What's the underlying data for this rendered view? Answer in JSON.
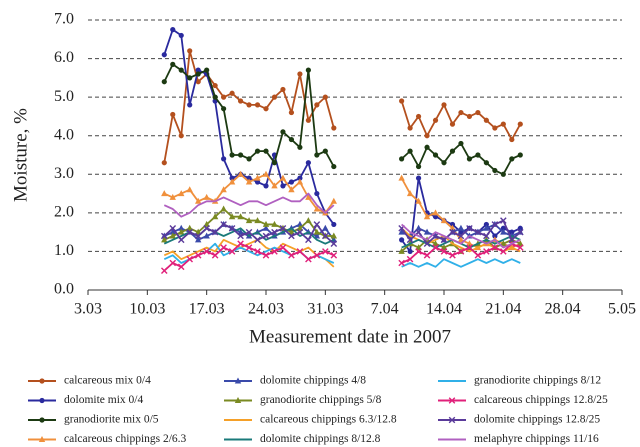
{
  "chart_data": {
    "type": "line",
    "x_label": "Measurement date in 2007",
    "y_label": "Moisture, %",
    "x": [
      71,
      72,
      73,
      74,
      75,
      76,
      77,
      78,
      79,
      80,
      81,
      82,
      83,
      84,
      85,
      86,
      87,
      88,
      89,
      90,
      91,
      95,
      99,
      100,
      101,
      102,
      103,
      104,
      105,
      106,
      107,
      108,
      109,
      110,
      111,
      112,
      113
    ],
    "xlim": [
      62,
      125
    ],
    "xticks": [
      {
        "value": 62,
        "label": "3.03"
      },
      {
        "value": 69,
        "label": "10.03"
      },
      {
        "value": 76,
        "label": "17.03"
      },
      {
        "value": 83,
        "label": "24.03"
      },
      {
        "value": 90,
        "label": "31.03"
      },
      {
        "value": 97,
        "label": "7.04"
      },
      {
        "value": 104,
        "label": "14.04"
      },
      {
        "value": 111,
        "label": "21.04"
      },
      {
        "value": 118,
        "label": "28.04"
      },
      {
        "value": 125,
        "label": "5.05"
      }
    ],
    "ylim": [
      0,
      7
    ],
    "yticks": [
      {
        "value": 0,
        "label": "0.0"
      },
      {
        "value": 1,
        "label": "1.0"
      },
      {
        "value": 2,
        "label": "2.0"
      },
      {
        "value": 3,
        "label": "3.0"
      },
      {
        "value": 4,
        "label": "4.0"
      },
      {
        "value": 5,
        "label": "5.0"
      },
      {
        "value": 6,
        "label": "6.0"
      },
      {
        "value": 7,
        "label": "7.0"
      }
    ],
    "grid": true,
    "series": [
      {
        "name": "calcareous mix 0/4",
        "color": "#b4501e",
        "marker": "circle",
        "values": [
          3.3,
          4.55,
          4.0,
          6.2,
          5.4,
          5.6,
          5.3,
          5.0,
          5.1,
          4.9,
          4.8,
          4.8,
          4.7,
          5.0,
          5.2,
          4.6,
          5.6,
          4.4,
          4.8,
          5.0,
          4.2,
          null,
          4.9,
          4.2,
          4.5,
          4.0,
          4.4,
          4.8,
          4.3,
          4.6,
          4.5,
          4.6,
          4.4,
          4.2,
          4.3,
          3.9,
          4.3
        ]
      },
      {
        "name": "dolomite mix 0/4",
        "color": "#2a2a9e",
        "marker": "circle",
        "values": [
          6.1,
          6.75,
          6.6,
          4.8,
          5.7,
          5.6,
          4.9,
          3.4,
          2.9,
          3.0,
          2.9,
          2.8,
          2.7,
          3.5,
          2.7,
          2.8,
          2.9,
          3.3,
          2.5,
          2.0,
          1.7,
          null,
          1.3,
          1.0,
          2.9,
          2.0,
          1.9,
          1.8,
          1.7,
          1.5,
          1.6,
          1.5,
          1.7,
          1.4,
          1.6,
          1.5,
          1.6
        ]
      },
      {
        "name": "granodiorite mix 0/5",
        "color": "#1c3a12",
        "marker": "circle",
        "values": [
          5.4,
          5.85,
          5.7,
          5.5,
          5.6,
          5.7,
          5.0,
          4.7,
          3.5,
          3.5,
          3.4,
          3.6,
          3.6,
          3.3,
          4.1,
          3.9,
          3.7,
          5.7,
          3.5,
          3.6,
          3.2,
          null,
          3.4,
          3.6,
          3.2,
          3.7,
          3.5,
          3.3,
          3.6,
          3.8,
          3.4,
          3.5,
          3.3,
          3.1,
          3.0,
          3.4,
          3.5
        ]
      },
      {
        "name": "calcareous chippings 2/6.3",
        "color": "#f0903c",
        "marker": "triangle",
        "values": [
          2.5,
          2.4,
          2.5,
          2.6,
          2.3,
          2.4,
          2.3,
          2.6,
          2.8,
          3.0,
          2.8,
          2.9,
          3.0,
          2.7,
          2.9,
          2.6,
          2.8,
          2.4,
          2.1,
          2.0,
          2.3,
          null,
          2.9,
          2.5,
          2.3,
          1.9,
          2.0,
          1.8,
          1.6,
          1.3,
          1.2,
          1.1,
          1.2,
          1.3,
          1.2,
          1.1,
          1.2
        ]
      },
      {
        "name": "dolomite chippings 4/8",
        "color": "#3a4aaa",
        "marker": "triangle",
        "values": [
          1.4,
          1.5,
          1.6,
          1.5,
          1.3,
          1.4,
          1.5,
          1.7,
          1.6,
          1.5,
          1.4,
          1.5,
          1.6,
          1.4,
          1.5,
          1.6,
          1.7,
          1.5,
          1.4,
          1.6,
          1.3,
          null,
          1.5,
          1.4,
          1.6,
          1.5,
          1.4,
          1.3,
          1.5,
          1.6,
          1.4,
          1.5,
          1.6,
          1.7,
          1.5,
          1.4,
          1.5
        ]
      },
      {
        "name": "granodiorite chippings 5/8",
        "color": "#7a8a22",
        "marker": "triangle",
        "values": [
          1.3,
          1.4,
          1.5,
          1.6,
          1.5,
          1.7,
          1.9,
          2.1,
          1.9,
          1.9,
          1.8,
          1.8,
          1.7,
          1.7,
          1.6,
          1.5,
          1.6,
          1.8,
          1.5,
          1.4,
          1.4,
          null,
          1.0,
          1.2,
          1.1,
          1.3,
          1.2,
          1.1,
          1.2,
          1.0,
          1.1,
          1.2,
          1.3,
          1.1,
          1.2,
          1.3,
          1.2
        ]
      },
      {
        "name": "calcareous chippings 6.3/12.8",
        "color": "#f5a028",
        "marker": "none",
        "values": [
          0.9,
          1.0,
          0.8,
          0.9,
          1.0,
          1.1,
          1.0,
          1.3,
          1.2,
          1.1,
          1.2,
          1.3,
          1.1,
          1.0,
          1.2,
          1.1,
          1.0,
          1.1,
          0.9,
          0.8,
          0.6,
          null,
          1.6,
          1.4,
          1.3,
          1.2,
          1.3,
          1.4,
          1.2,
          1.1,
          1.0,
          1.1,
          1.2,
          1.1,
          1.0,
          1.1,
          1.0
        ]
      },
      {
        "name": "dolomite chippings 8/12.8",
        "color": "#1a7a7a",
        "marker": "none",
        "values": [
          1.2,
          1.3,
          1.4,
          1.5,
          1.4,
          1.6,
          1.5,
          1.4,
          1.5,
          1.6,
          1.4,
          1.5,
          1.3,
          1.4,
          1.5,
          1.6,
          1.4,
          1.5,
          1.3,
          1.2,
          1.3,
          null,
          1.1,
          1.2,
          1.3,
          1.2,
          1.1,
          1.2,
          1.3,
          1.2,
          1.1,
          1.2,
          1.3,
          1.2,
          1.3,
          1.4,
          1.3
        ]
      },
      {
        "name": "granodiorite chippings 8/12",
        "color": "#30b0e8",
        "marker": "none",
        "values": [
          0.8,
          0.9,
          0.7,
          0.8,
          0.9,
          1.0,
          1.2,
          0.9,
          1.0,
          1.1,
          1.0,
          0.9,
          1.0,
          1.1,
          1.0,
          0.9,
          1.0,
          0.8,
          0.9,
          0.8,
          0.7,
          null,
          0.6,
          0.7,
          0.6,
          0.7,
          0.6,
          0.8,
          0.7,
          0.6,
          0.7,
          0.8,
          0.7,
          0.8,
          0.7,
          0.8,
          0.7
        ]
      },
      {
        "name": "calcareous chippings 12.8/25",
        "color": "#e0207a",
        "marker": "cross",
        "values": [
          0.5,
          0.7,
          0.6,
          0.8,
          0.9,
          1.0,
          0.9,
          1.1,
          1.0,
          1.2,
          1.1,
          1.0,
          0.9,
          1.0,
          1.1,
          0.9,
          1.0,
          0.8,
          0.9,
          1.0,
          0.9,
          null,
          0.7,
          0.8,
          1.0,
          0.9,
          1.1,
          1.0,
          0.9,
          1.0,
          1.1,
          0.9,
          1.0,
          1.1,
          1.0,
          1.2,
          1.1
        ]
      },
      {
        "name": "dolomite chippings 12.8/25",
        "color": "#5a3a9a",
        "marker": "cross",
        "values": [
          1.4,
          1.6,
          1.3,
          1.5,
          1.4,
          1.6,
          1.5,
          1.7,
          1.6,
          1.4,
          1.5,
          1.3,
          1.4,
          1.5,
          1.6,
          1.4,
          1.5,
          1.3,
          1.7,
          1.4,
          1.2,
          null,
          1.6,
          1.3,
          1.5,
          1.2,
          1.4,
          1.3,
          1.5,
          1.4,
          1.6,
          1.5,
          1.4,
          1.7,
          1.8,
          1.3,
          1.5
        ]
      },
      {
        "name": "melaphyre chippings 11/16",
        "color": "#b060c0",
        "marker": "none",
        "values": [
          2.2,
          2.1,
          1.9,
          2.0,
          2.2,
          2.3,
          2.3,
          2.4,
          2.3,
          2.2,
          2.3,
          2.3,
          2.2,
          2.3,
          2.4,
          2.3,
          2.3,
          2.5,
          2.2,
          2.0,
          2.2,
          null,
          1.7,
          1.5,
          1.4,
          1.3,
          1.5,
          1.4,
          1.3,
          1.2,
          1.4,
          1.3,
          1.2,
          1.3,
          1.1,
          1.2,
          1.3
        ]
      }
    ]
  }
}
